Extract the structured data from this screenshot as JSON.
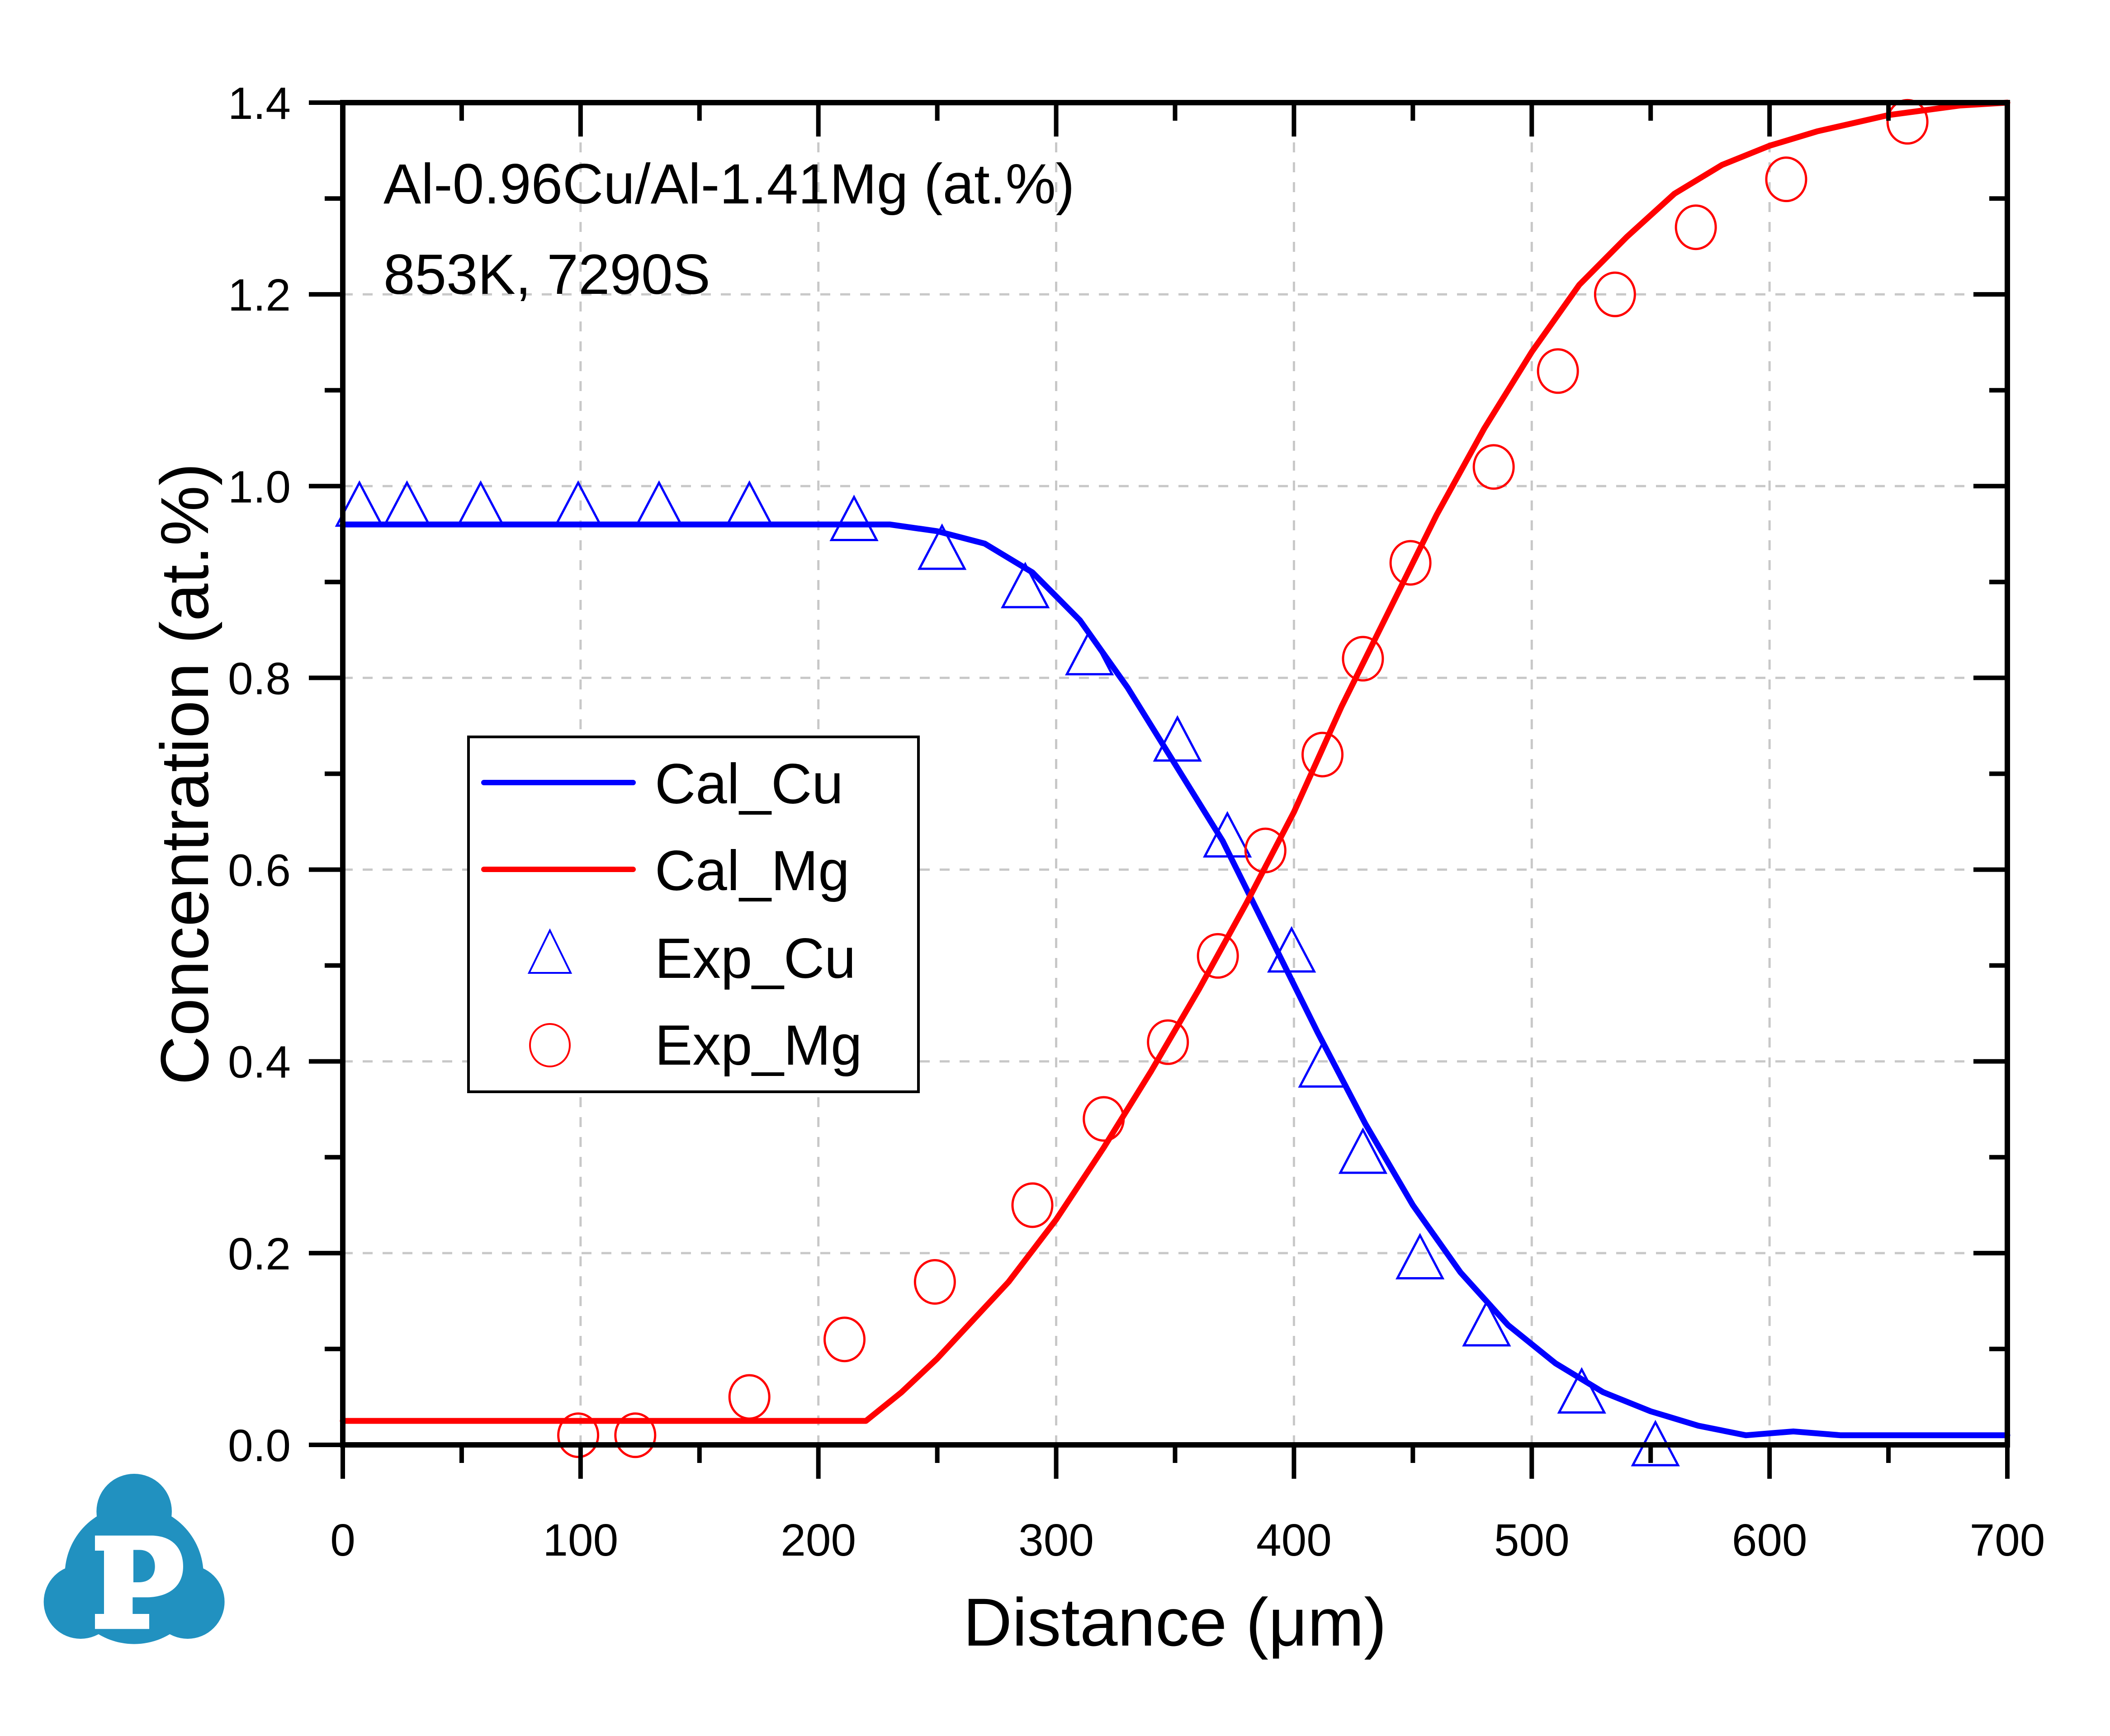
{
  "chart_data": {
    "type": "line",
    "title": "",
    "annotations": [
      "Al-0.96Cu/Al-1.41Mg (at.%)",
      "853K, 7290S"
    ],
    "xlabel": "Distance (μm)",
    "ylabel": "Concentration (at.%)",
    "xlim": [
      0,
      700
    ],
    "ylim": [
      0,
      1.4
    ],
    "xticks": [
      0,
      100,
      200,
      300,
      400,
      500,
      600,
      700
    ],
    "xtick_labels": [
      "0",
      "100",
      "200",
      "300",
      "400",
      "500",
      "600",
      "700"
    ],
    "yticks": [
      0.0,
      0.2,
      0.4,
      0.6,
      0.8,
      1.0,
      1.2,
      1.4
    ],
    "ytick_labels": [
      "0.0",
      "0.2",
      "0.4",
      "0.6",
      "0.8",
      "1.0",
      "1.2",
      "1.4"
    ],
    "grid": true,
    "legend_position": "center-left",
    "series": [
      {
        "name": "Cal_Cu",
        "kind": "line",
        "color": "#0000ff",
        "x": [
          0,
          50,
          100,
          150,
          200,
          215,
          230,
          250,
          270,
          290,
          310,
          330,
          350,
          370,
          390,
          410,
          430,
          450,
          470,
          490,
          510,
          530,
          550,
          570,
          590,
          610,
          630,
          660,
          700
        ],
        "y": [
          0.96,
          0.96,
          0.96,
          0.96,
          0.96,
          0.96,
          0.96,
          0.953,
          0.94,
          0.91,
          0.86,
          0.79,
          0.71,
          0.63,
          0.53,
          0.43,
          0.335,
          0.25,
          0.18,
          0.125,
          0.085,
          0.055,
          0.035,
          0.02,
          0.01,
          0.014,
          0.01,
          0.01,
          0.01
        ]
      },
      {
        "name": "Cal_Mg",
        "kind": "line",
        "color": "#ff0000",
        "x": [
          0,
          50,
          100,
          150,
          200,
          220,
          235,
          250,
          265,
          280,
          300,
          320,
          340,
          360,
          380,
          400,
          420,
          440,
          460,
          480,
          500,
          520,
          540,
          560,
          580,
          600,
          620,
          650,
          680,
          700
        ],
        "y": [
          0.025,
          0.025,
          0.025,
          0.025,
          0.025,
          0.025,
          0.055,
          0.09,
          0.13,
          0.17,
          0.235,
          0.31,
          0.39,
          0.475,
          0.565,
          0.66,
          0.77,
          0.87,
          0.97,
          1.06,
          1.14,
          1.21,
          1.26,
          1.305,
          1.335,
          1.355,
          1.37,
          1.387,
          1.397,
          1.4
        ]
      },
      {
        "name": "Exp_Cu",
        "kind": "scatter",
        "marker": "open-triangle",
        "color": "#0000ff",
        "x": [
          7,
          27,
          58,
          99,
          133,
          171,
          215,
          252,
          287,
          314,
          351,
          372,
          399,
          412,
          429,
          453,
          481,
          521,
          552
        ],
        "y": [
          0.98,
          0.98,
          0.98,
          0.98,
          0.98,
          0.98,
          0.965,
          0.935,
          0.895,
          0.825,
          0.735,
          0.635,
          0.515,
          0.395,
          0.305,
          0.195,
          0.125,
          0.055,
          0.0
        ]
      },
      {
        "name": "Exp_Mg",
        "kind": "scatter",
        "marker": "open-circle",
        "color": "#ff0000",
        "x": [
          99,
          123,
          171,
          211,
          249,
          290,
          320,
          347,
          368,
          388,
          412,
          429,
          449,
          484,
          511,
          535,
          569,
          607,
          658
        ],
        "y": [
          0.01,
          0.01,
          0.05,
          0.11,
          0.17,
          0.25,
          0.34,
          0.42,
          0.51,
          0.62,
          0.72,
          0.82,
          0.92,
          1.02,
          1.12,
          1.2,
          1.27,
          1.32,
          1.38
        ]
      }
    ]
  },
  "logo": {
    "name": "p-cloud-logo",
    "letter": "P",
    "color": "#2191c0"
  }
}
